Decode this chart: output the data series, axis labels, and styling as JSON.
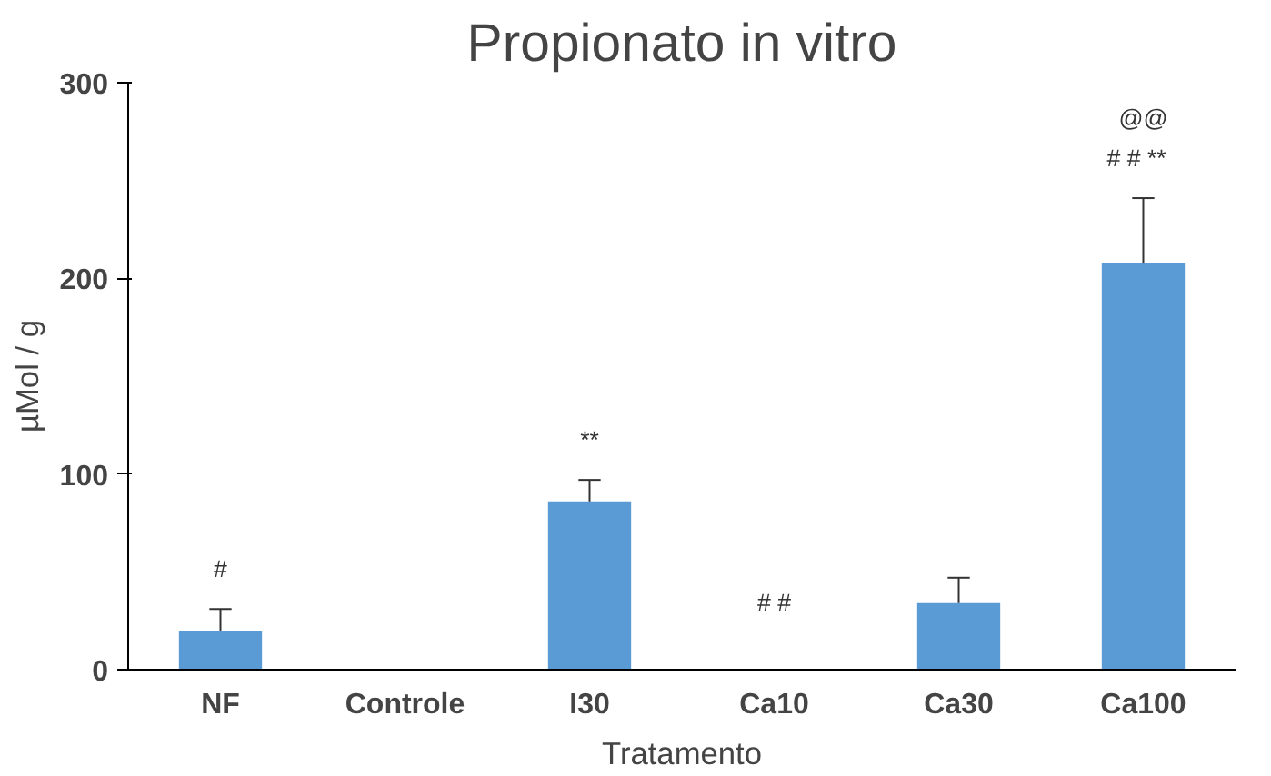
{
  "chart_data": {
    "type": "bar",
    "title": "Propionato in vitro",
    "xlabel": "Tratamento",
    "ylabel": "µMol / g",
    "categories": [
      "NF",
      "Controle",
      "I30",
      "Ca10",
      "Ca30",
      "Ca100"
    ],
    "values": [
      20,
      0,
      86,
      0,
      34,
      208
    ],
    "errors": [
      [
        20,
        31
      ],
      null,
      [
        86,
        97
      ],
      null,
      [
        34,
        47
      ],
      [
        208,
        241
      ]
    ],
    "color": "#5b9bd5",
    "ylim": [
      0,
      300
    ],
    "yticks": [
      0,
      100,
      200,
      300
    ],
    "grid": false,
    "annotations": [
      {
        "text": "#",
        "x": "NF",
        "y": 31
      },
      {
        "text": "**",
        "x": "I30",
        "y": 97
      },
      {
        "text": "# #",
        "x": "Ca10",
        "y": 0
      },
      {
        "text": "# #   **",
        "x": "Ca100",
        "y": 241
      },
      {
        "text": "@@",
        "x": "Ca100",
        "y": 241
      }
    ]
  }
}
